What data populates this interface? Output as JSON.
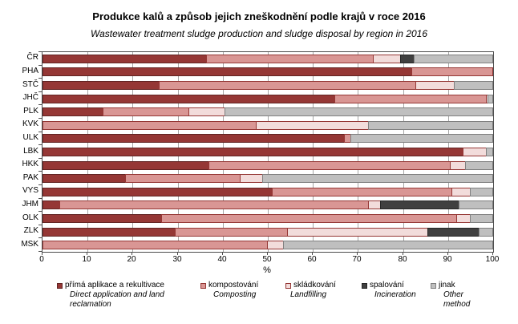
{
  "title": "Produkce kalů a způsob jejich zneškodnění podle krajů v roce 2016",
  "subtitle": "Wastewater treatment sludge production and sludge disposal by region in 2016",
  "xlabel": "%",
  "chart_data": {
    "type": "bar",
    "orientation": "horizontal",
    "stacked": true,
    "unit": "%",
    "xlim": [
      0,
      100
    ],
    "x_ticks": [
      0,
      10,
      20,
      30,
      40,
      50,
      60,
      70,
      80,
      90,
      100
    ],
    "grid": true,
    "legend_position": "bottom",
    "categories": [
      "ČR",
      "PHA",
      "STČ",
      "JHČ",
      "PLK",
      "KVK",
      "ULK",
      "LBK",
      "HKK",
      "PAK",
      "VYS",
      "JHM",
      "OLK",
      "ZLK",
      "MSK"
    ],
    "series": [
      {
        "name": "přímá aplikace a rekultivace",
        "name_en": "Direct application and land reclamation",
        "color": "#953735",
        "border": "#622423",
        "values": [
          36.5,
          82,
          26,
          65,
          13.5,
          0,
          67,
          93.5,
          37,
          18.5,
          51,
          4,
          26.5,
          29.5,
          0
        ]
      },
      {
        "name": "kompostování",
        "name_en": "Composting",
        "color": "#D99694",
        "border": "#953735",
        "values": [
          37,
          18,
          57,
          33.5,
          19,
          47.5,
          1.5,
          0,
          53.5,
          25.5,
          40,
          68.5,
          65.5,
          25,
          50
        ]
      },
      {
        "name": "skládkování",
        "name_en": "Landfilling",
        "color": "#F2DCDB",
        "border": "#953735",
        "values": [
          6,
          0,
          8.5,
          0.5,
          8,
          25,
          0,
          5,
          3.5,
          5,
          4,
          2.5,
          3,
          31,
          3.5
        ]
      },
      {
        "name": "spalování",
        "name_en": "Incineration",
        "color": "#404040",
        "border": "#262626",
        "values": [
          3,
          0,
          0,
          0,
          0,
          0,
          0,
          0,
          0,
          0,
          0,
          17.5,
          0,
          11.5,
          0
        ]
      },
      {
        "name": "jinak",
        "name_en": "Other method",
        "color": "#BFBFBF",
        "border": "#808080",
        "values": [
          17.5,
          0,
          8.5,
          1,
          59.5,
          27.5,
          31.5,
          1.5,
          6,
          51,
          5,
          7.5,
          5,
          3,
          46.5
        ]
      }
    ]
  }
}
